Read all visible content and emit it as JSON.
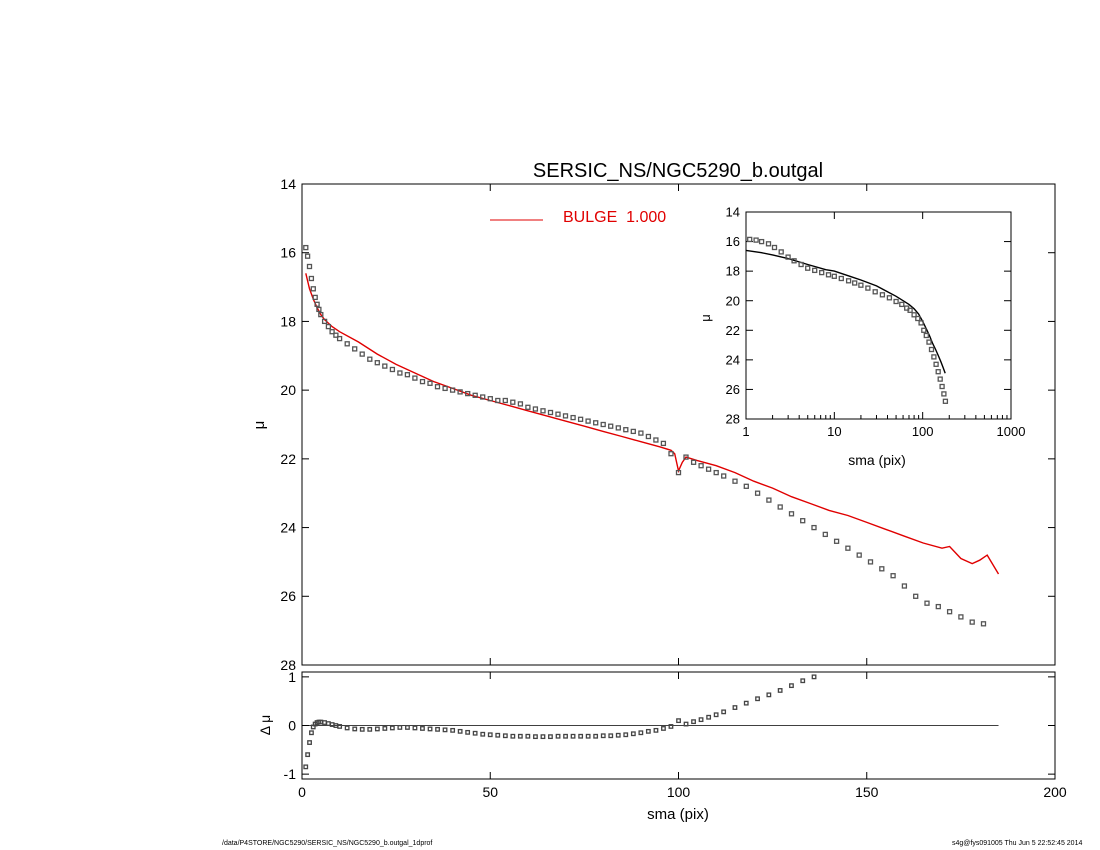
{
  "title": "SERSIC_NS/NGC5290_b.outgal",
  "legend": {
    "label": "BULGE  1.000",
    "color": "#e00000"
  },
  "footer": {
    "path": "/data/P4STORE/NGC5290/SERSIC_NS/NGC5290_b.outgal_1dprof",
    "stamp": "s4g@fys091005  Thu Jun  5 22:52:45 2014"
  },
  "chart_data": [
    {
      "type": "line",
      "panel": "main",
      "xlabel": "",
      "ylabel": "μ",
      "xlim": [
        0,
        200
      ],
      "ylim": [
        28,
        14
      ],
      "xticks": [
        0,
        50,
        100,
        150,
        200
      ],
      "yticks": [
        14,
        16,
        18,
        20,
        22,
        24,
        26,
        28
      ],
      "series": [
        {
          "name": "BULGE  1.000",
          "style": "line",
          "color": "#e00000",
          "x": [
            1,
            2,
            3,
            4,
            5,
            6,
            8,
            10,
            15,
            20,
            25,
            30,
            35,
            40,
            45,
            50,
            55,
            60,
            65,
            70,
            75,
            80,
            85,
            90,
            95,
            98,
            99,
            100,
            101,
            102,
            105,
            110,
            115,
            120,
            125,
            130,
            135,
            140,
            145,
            150,
            155,
            160,
            165,
            170,
            172,
            175,
            178,
            180,
            182,
            185
          ],
          "y": [
            16.6,
            17.05,
            17.35,
            17.6,
            17.8,
            17.95,
            18.15,
            18.3,
            18.6,
            18.95,
            19.25,
            19.5,
            19.75,
            19.95,
            20.15,
            20.3,
            20.45,
            20.6,
            20.75,
            20.9,
            21.05,
            21.2,
            21.35,
            21.5,
            21.65,
            21.75,
            21.85,
            22.35,
            22.1,
            21.95,
            22.05,
            22.2,
            22.4,
            22.65,
            22.85,
            23.1,
            23.3,
            23.5,
            23.65,
            23.85,
            24.05,
            24.25,
            24.45,
            24.6,
            24.55,
            24.9,
            25.05,
            24.95,
            24.8,
            25.35
          ]
        },
        {
          "style": "markers",
          "color": "#555555",
          "x": [
            1,
            1.5,
            2,
            2.5,
            3,
            3.5,
            4,
            4.5,
            5,
            6,
            7,
            8,
            9,
            10,
            12,
            14,
            16,
            18,
            20,
            22,
            24,
            26,
            28,
            30,
            32,
            34,
            36,
            38,
            40,
            42,
            44,
            46,
            48,
            50,
            52,
            54,
            56,
            58,
            60,
            62,
            64,
            66,
            68,
            70,
            72,
            74,
            76,
            78,
            80,
            82,
            84,
            86,
            88,
            90,
            92,
            94,
            96,
            98,
            100,
            102,
            104,
            106,
            108,
            110,
            112,
            115,
            118,
            121,
            124,
            127,
            130,
            133,
            136,
            139,
            142,
            145,
            148,
            151,
            154,
            157,
            160,
            163,
            166,
            169,
            172,
            175,
            178,
            181
          ],
          "y": [
            15.85,
            16.1,
            16.4,
            16.75,
            17.05,
            17.3,
            17.5,
            17.65,
            17.8,
            18.0,
            18.15,
            18.3,
            18.4,
            18.5,
            18.65,
            18.8,
            18.95,
            19.1,
            19.2,
            19.3,
            19.4,
            19.5,
            19.55,
            19.65,
            19.75,
            19.8,
            19.9,
            19.95,
            20.0,
            20.05,
            20.1,
            20.15,
            20.2,
            20.25,
            20.3,
            20.3,
            20.35,
            20.4,
            20.5,
            20.55,
            20.6,
            20.65,
            20.7,
            20.75,
            20.8,
            20.85,
            20.9,
            20.95,
            21.0,
            21.05,
            21.1,
            21.15,
            21.2,
            21.25,
            21.35,
            21.45,
            21.55,
            21.85,
            22.4,
            21.95,
            22.1,
            22.2,
            22.3,
            22.4,
            22.5,
            22.65,
            22.8,
            23.0,
            23.2,
            23.4,
            23.6,
            23.8,
            24.0,
            24.2,
            24.4,
            24.6,
            24.8,
            25.0,
            25.2,
            25.4,
            25.7,
            26.0,
            26.2,
            26.3,
            26.45,
            26.6,
            26.75,
            26.8
          ]
        }
      ]
    },
    {
      "type": "scatter",
      "panel": "residual",
      "xlabel": "sma (pix)",
      "ylabel": "Δ μ",
      "xlim": [
        0,
        200
      ],
      "ylim": [
        -1.1,
        1.1
      ],
      "xticks": [
        0,
        50,
        100,
        150,
        200
      ],
      "yticks": [
        -1,
        0,
        1
      ],
      "reference_line": {
        "y": 0,
        "x": [
          1,
          185
        ]
      },
      "series": [
        {
          "style": "markers",
          "color": "#444444",
          "x": [
            1,
            1.5,
            2,
            2.5,
            3,
            3.5,
            4,
            4.5,
            5,
            6,
            7,
            8,
            9,
            10,
            12,
            14,
            16,
            18,
            20,
            22,
            24,
            26,
            28,
            30,
            32,
            34,
            36,
            38,
            40,
            42,
            44,
            46,
            48,
            50,
            52,
            54,
            56,
            58,
            60,
            62,
            64,
            66,
            68,
            70,
            72,
            74,
            76,
            78,
            80,
            82,
            84,
            86,
            88,
            90,
            92,
            94,
            96,
            98,
            100,
            102,
            104,
            106,
            108,
            110,
            112,
            115,
            118,
            121,
            124,
            127,
            130,
            133,
            136
          ],
          "y": [
            -0.85,
            -0.6,
            -0.35,
            -0.15,
            -0.03,
            0.03,
            0.06,
            0.07,
            0.07,
            0.06,
            0.04,
            0.02,
            0.0,
            -0.02,
            -0.05,
            -0.07,
            -0.08,
            -0.08,
            -0.07,
            -0.06,
            -0.05,
            -0.04,
            -0.04,
            -0.05,
            -0.06,
            -0.07,
            -0.08,
            -0.09,
            -0.1,
            -0.12,
            -0.14,
            -0.16,
            -0.18,
            -0.19,
            -0.2,
            -0.21,
            -0.22,
            -0.22,
            -0.22,
            -0.23,
            -0.23,
            -0.23,
            -0.22,
            -0.22,
            -0.22,
            -0.22,
            -0.22,
            -0.22,
            -0.21,
            -0.21,
            -0.2,
            -0.19,
            -0.17,
            -0.15,
            -0.12,
            -0.1,
            -0.06,
            -0.02,
            0.1,
            0.03,
            0.08,
            0.12,
            0.17,
            0.22,
            0.28,
            0.37,
            0.46,
            0.55,
            0.63,
            0.72,
            0.82,
            0.92,
            1.0
          ]
        }
      ]
    },
    {
      "type": "line",
      "panel": "inset",
      "xscale": "log",
      "xlabel": "sma (pix)",
      "ylabel": "μ",
      "xlim": [
        1,
        1000
      ],
      "ylim": [
        28,
        14
      ],
      "xticks": [
        1,
        10,
        100,
        1000
      ],
      "xticklabels": [
        "1",
        "10",
        "100",
        "1000"
      ],
      "yticks": [
        14,
        16,
        18,
        20,
        22,
        24,
        26,
        28
      ],
      "series": [
        {
          "style": "line",
          "color": "#000000",
          "x": [
            1,
            1.5,
            2,
            3,
            5,
            8,
            10,
            15,
            20,
            30,
            40,
            50,
            60,
            70,
            80,
            90,
            100,
            110,
            120,
            130,
            140,
            150,
            160,
            170,
            180
          ],
          "y": [
            16.6,
            16.75,
            16.9,
            17.15,
            17.55,
            17.9,
            18.0,
            18.35,
            18.6,
            19.0,
            19.4,
            19.7,
            20.0,
            20.25,
            20.55,
            20.9,
            21.4,
            21.9,
            22.4,
            22.9,
            23.3,
            23.7,
            24.1,
            24.5,
            24.9
          ]
        },
        {
          "style": "markers",
          "color": "#555555",
          "x": [
            1.1,
            1.3,
            1.5,
            1.8,
            2.1,
            2.5,
            3.0,
            3.5,
            4.2,
            5.0,
            6.0,
            7.2,
            8.6,
            10,
            12,
            14.5,
            17,
            20,
            24,
            29,
            35,
            42,
            50,
            58,
            66,
            72,
            80,
            88,
            96,
            103,
            110,
            118,
            126,
            134,
            142,
            150,
            158,
            166,
            174,
            181
          ],
          "y": [
            15.85,
            15.9,
            16.0,
            16.15,
            16.4,
            16.7,
            17.05,
            17.3,
            17.55,
            17.8,
            17.95,
            18.1,
            18.25,
            18.35,
            18.5,
            18.65,
            18.8,
            18.95,
            19.15,
            19.4,
            19.6,
            19.8,
            20.05,
            20.25,
            20.5,
            20.65,
            20.95,
            21.2,
            21.5,
            22.0,
            22.35,
            22.8,
            23.3,
            23.8,
            24.3,
            24.8,
            25.3,
            25.8,
            26.3,
            26.8
          ]
        }
      ]
    }
  ]
}
